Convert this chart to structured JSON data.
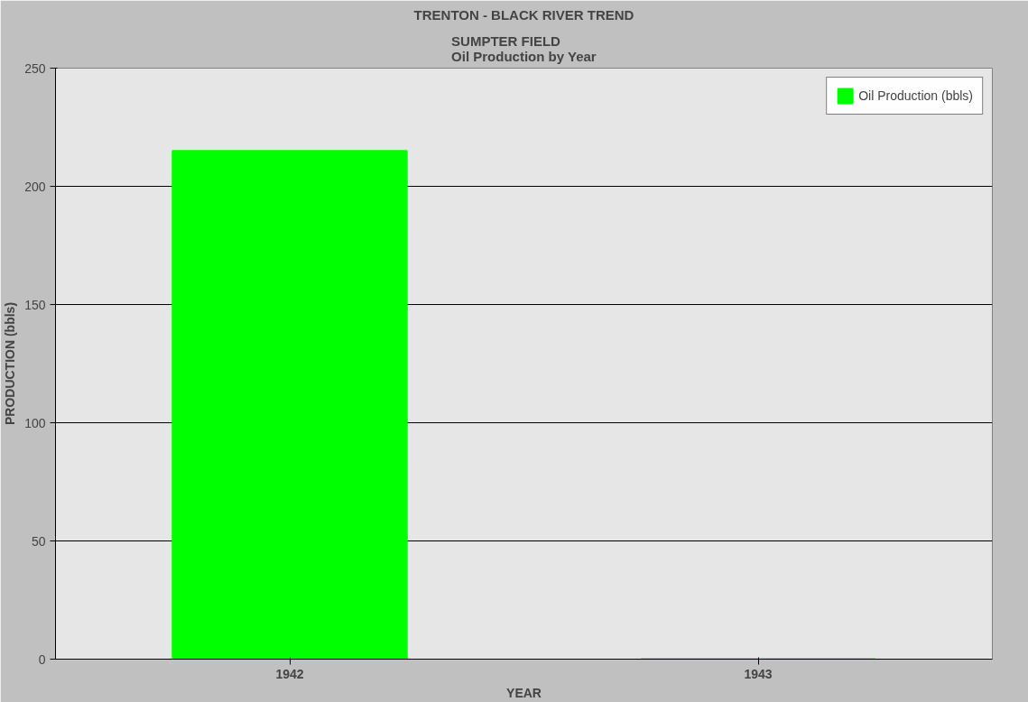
{
  "chart_data": {
    "type": "bar",
    "title": "TRENTON - BLACK RIVER TREND",
    "subtitle": "SUMPTER FIELD\nOil Production by Year",
    "xlabel": "YEAR",
    "ylabel": "PRODUCTION (bbls)",
    "categories": [
      "1942",
      "1943"
    ],
    "series": [
      {
        "name": "Oil Production (bbls)",
        "color": "#00ff00",
        "values": [
          215,
          0
        ]
      }
    ],
    "ylim": [
      0,
      250
    ],
    "yticks": [
      0,
      50,
      100,
      150,
      200,
      250
    ],
    "grid": "y",
    "legend": "top right"
  }
}
